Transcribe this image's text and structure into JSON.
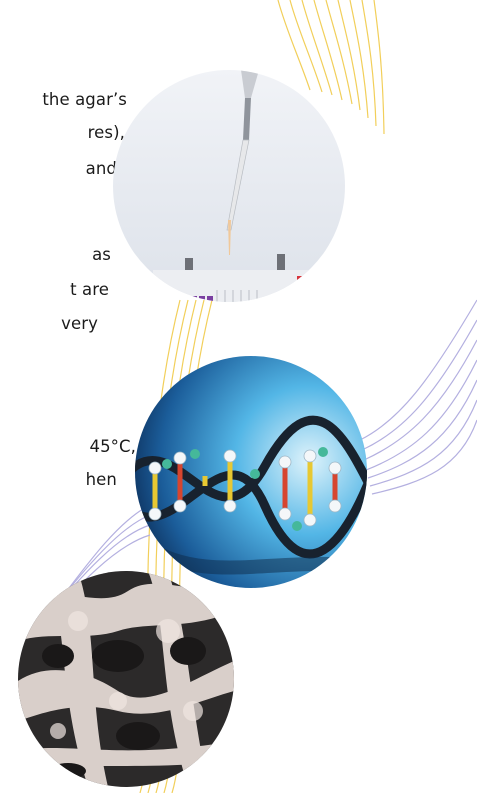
{
  "text_lines": [
    "the agar’s",
    "res),",
    "and",
    "as",
    "t are",
    "very",
    "45°C,",
    "hen"
  ],
  "colors": {
    "text": "#1b1b1b",
    "yellow_lines": "#f2cf5a",
    "purple_lines": "#b4b0e0"
  },
  "images": {
    "top": "pipette-gel-electrophoresis-photo",
    "middle": "dna-double-helix-model-photo",
    "bottom": "micrograph-photo"
  }
}
